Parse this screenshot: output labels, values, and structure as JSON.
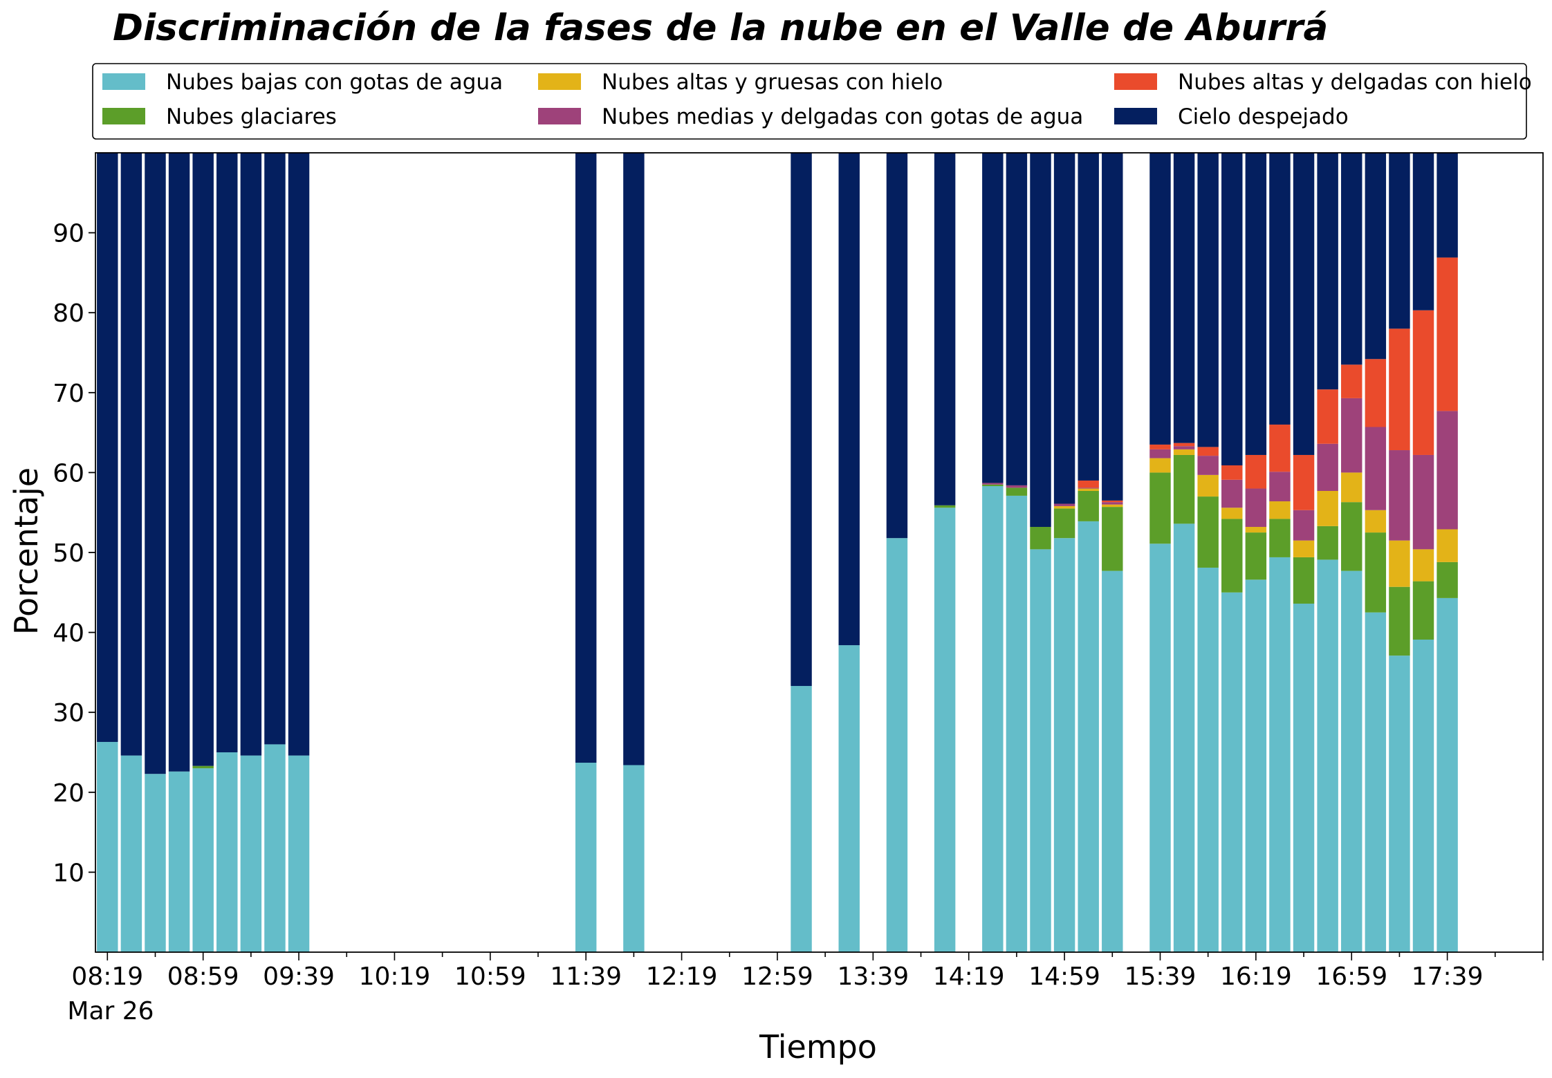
{
  "chart_data": {
    "type": "bar",
    "stacked": true,
    "title": "Discriminación de la fases de la nube en el Valle de Aburrá",
    "xlabel": "Tiempo",
    "ylabel": "Porcentaje",
    "ylim": [
      0,
      100
    ],
    "yticks": [
      10,
      20,
      30,
      40,
      50,
      60,
      70,
      80,
      90
    ],
    "x_tick_labels": [
      "08:19",
      "08:59",
      "09:39",
      "10:19",
      "10:59",
      "11:39",
      "12:19",
      "12:59",
      "13:39",
      "14:19",
      "14:59",
      "15:39",
      "16:19",
      "16:59",
      "17:39"
    ],
    "x_date_label": "Mar 26",
    "x_range_minutes": [
      "08:19",
      "18:19"
    ],
    "grid": false,
    "legend_position": "top",
    "x": [
      "08:19",
      "08:29",
      "08:39",
      "08:49",
      "08:59",
      "09:09",
      "09:19",
      "09:29",
      "09:39",
      "11:39",
      "11:59",
      "13:09",
      "13:29",
      "13:49",
      "14:09",
      "14:29",
      "14:39",
      "14:49",
      "14:59",
      "15:09",
      "15:19",
      "15:39",
      "15:49",
      "15:59",
      "16:09",
      "16:19",
      "16:29",
      "16:39",
      "16:49",
      "16:59",
      "17:09",
      "17:19",
      "17:29",
      "17:39"
    ],
    "series": [
      {
        "name": "Nubes bajas con gotas de agua",
        "color": "#64bdc9",
        "values": [
          26.3,
          24.6,
          22.3,
          22.6,
          23.0,
          25.0,
          24.6,
          26.0,
          24.6,
          23.7,
          23.4,
          33.3,
          38.4,
          51.8,
          55.6,
          58.3,
          57.1,
          50.4,
          51.8,
          53.9,
          47.7,
          51.1,
          53.6,
          48.1,
          45.0,
          46.6,
          49.4,
          43.6,
          49.1,
          47.7,
          42.5,
          37.1,
          39.1,
          44.3
        ]
      },
      {
        "name": "Nubes glaciares",
        "color": "#5c9e29",
        "values": [
          0,
          0,
          0,
          0,
          0.3,
          0,
          0,
          0,
          0,
          0,
          0,
          0,
          0,
          0,
          0.3,
          0.2,
          1.0,
          2.8,
          3.7,
          3.8,
          8.0,
          8.9,
          8.6,
          8.9,
          9.2,
          5.9,
          4.8,
          5.8,
          4.2,
          8.6,
          10.0,
          8.6,
          7.3,
          4.5
        ]
      },
      {
        "name": "Nubes altas y gruesas con hielo",
        "color": "#e3b318",
        "values": [
          0,
          0,
          0,
          0,
          0,
          0,
          0,
          0,
          0,
          0,
          0,
          0,
          0,
          0,
          0,
          0,
          0,
          0,
          0.3,
          0.3,
          0.3,
          1.8,
          0.7,
          2.7,
          1.4,
          0.7,
          2.2,
          2.1,
          4.4,
          3.7,
          2.8,
          5.8,
          4.0,
          4.1
        ]
      },
      {
        "name": "Nubes medias y delgadas con gotas de agua",
        "color": "#9e427a",
        "values": [
          0,
          0,
          0,
          0,
          0,
          0,
          0,
          0,
          0,
          0,
          0,
          0,
          0,
          0,
          0,
          0.2,
          0.3,
          0,
          0.3,
          0.1,
          0.3,
          1.1,
          0.4,
          2.4,
          3.5,
          4.8,
          3.7,
          3.8,
          5.9,
          9.3,
          10.4,
          11.3,
          11.8,
          14.8
        ]
      },
      {
        "name": "Nubes altas y delgadas con hielo",
        "color": "#ea4b2c",
        "values": [
          0,
          0,
          0,
          0,
          0,
          0,
          0,
          0,
          0,
          0,
          0,
          0,
          0,
          0,
          0,
          0,
          0,
          0,
          0,
          0.9,
          0.2,
          0.6,
          0.4,
          1.1,
          1.8,
          4.2,
          5.9,
          6.9,
          6.8,
          4.2,
          8.5,
          15.2,
          18.1,
          19.2
        ]
      },
      {
        "name": "Cielo despejado",
        "color": "#041f5f",
        "values": [
          73.7,
          75.4,
          77.7,
          77.4,
          76.7,
          75.0,
          75.4,
          74.0,
          75.4,
          76.3,
          76.6,
          66.7,
          61.6,
          48.2,
          44.1,
          41.3,
          41.6,
          46.8,
          43.9,
          41.0,
          43.5,
          36.5,
          36.3,
          36.8,
          39.1,
          37.8,
          34.0,
          37.8,
          29.6,
          26.5,
          25.8,
          22.0,
          19.7,
          13.1
        ]
      }
    ]
  }
}
